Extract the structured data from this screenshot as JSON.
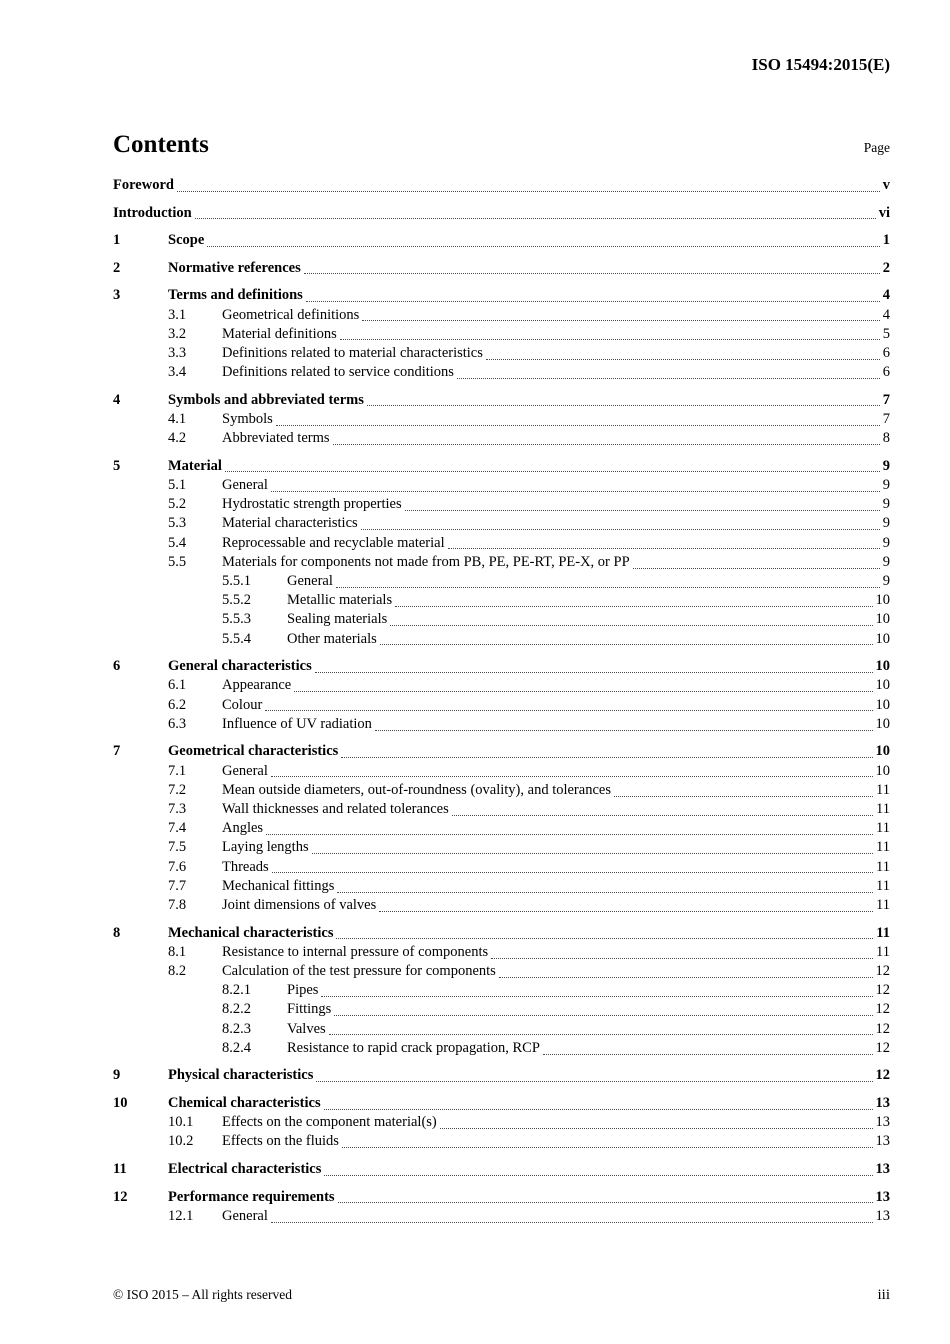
{
  "header": {
    "doc_ref": "ISO 15494:2015(E)"
  },
  "toc": {
    "title": "Contents",
    "page_label": "Page",
    "entries": [
      {
        "level": 0,
        "num": "",
        "title": "Foreword",
        "page": "v"
      },
      {
        "level": 0,
        "num": "",
        "title": "Introduction",
        "page": "vi"
      },
      {
        "level": 1,
        "num": "1",
        "title": "Scope",
        "page": "1"
      },
      {
        "level": 1,
        "num": "2",
        "title": "Normative references",
        "page": "2"
      },
      {
        "level": 1,
        "num": "3",
        "title": "Terms and definitions",
        "page": "4"
      },
      {
        "level": 2,
        "num": "3.1",
        "title": "Geometrical definitions",
        "page": "4"
      },
      {
        "level": 2,
        "num": "3.2",
        "title": "Material definitions",
        "page": "5"
      },
      {
        "level": 2,
        "num": "3.3",
        "title": "Definitions related to material characteristics",
        "page": "6"
      },
      {
        "level": 2,
        "num": "3.4",
        "title": "Definitions related to service conditions",
        "page": "6"
      },
      {
        "level": 1,
        "num": "4",
        "title": "Symbols and abbreviated terms",
        "page": "7"
      },
      {
        "level": 2,
        "num": "4.1",
        "title": "Symbols",
        "page": "7"
      },
      {
        "level": 2,
        "num": "4.2",
        "title": "Abbreviated terms",
        "page": "8"
      },
      {
        "level": 1,
        "num": "5",
        "title": "Material",
        "page": "9"
      },
      {
        "level": 2,
        "num": "5.1",
        "title": "General",
        "page": "9"
      },
      {
        "level": 2,
        "num": "5.2",
        "title": "Hydrostatic strength properties",
        "page": "9"
      },
      {
        "level": 2,
        "num": "5.3",
        "title": "Material characteristics",
        "page": "9"
      },
      {
        "level": 2,
        "num": "5.4",
        "title": "Reprocessable and recyclable material",
        "page": "9"
      },
      {
        "level": 2,
        "num": "5.5",
        "title": "Materials for components not made from PB, PE, PE-RT, PE-X, or PP",
        "page": "9"
      },
      {
        "level": 3,
        "num": "5.5.1",
        "title": "General",
        "page": "9"
      },
      {
        "level": 3,
        "num": "5.5.2",
        "title": "Metallic materials",
        "page": "10"
      },
      {
        "level": 3,
        "num": "5.5.3",
        "title": "Sealing materials",
        "page": "10"
      },
      {
        "level": 3,
        "num": "5.5.4",
        "title": "Other materials",
        "page": "10"
      },
      {
        "level": 1,
        "num": "6",
        "title": "General characteristics",
        "page": "10"
      },
      {
        "level": 2,
        "num": "6.1",
        "title": "Appearance",
        "page": "10"
      },
      {
        "level": 2,
        "num": "6.2",
        "title": "Colour",
        "page": "10"
      },
      {
        "level": 2,
        "num": "6.3",
        "title": "Influence of UV radiation",
        "page": "10"
      },
      {
        "level": 1,
        "num": "7",
        "title": "Geometrical characteristics",
        "page": "10"
      },
      {
        "level": 2,
        "num": "7.1",
        "title": "General",
        "page": "10"
      },
      {
        "level": 2,
        "num": "7.2",
        "title": "Mean outside diameters, out-of-roundness (ovality), and tolerances",
        "page": "11"
      },
      {
        "level": 2,
        "num": "7.3",
        "title": "Wall thicknesses and related tolerances",
        "page": "11"
      },
      {
        "level": 2,
        "num": "7.4",
        "title": "Angles",
        "page": "11"
      },
      {
        "level": 2,
        "num": "7.5",
        "title": "Laying lengths",
        "page": "11"
      },
      {
        "level": 2,
        "num": "7.6",
        "title": "Threads",
        "page": "11"
      },
      {
        "level": 2,
        "num": "7.7",
        "title": "Mechanical fittings",
        "page": "11"
      },
      {
        "level": 2,
        "num": "7.8",
        "title": "Joint dimensions of valves",
        "page": "11"
      },
      {
        "level": 1,
        "num": "8",
        "title": "Mechanical characteristics",
        "page": "11"
      },
      {
        "level": 2,
        "num": "8.1",
        "title": "Resistance to internal pressure of components",
        "page": "11"
      },
      {
        "level": 2,
        "num": "8.2",
        "title": "Calculation of the test pressure for components",
        "page": "12"
      },
      {
        "level": 3,
        "num": "8.2.1",
        "title": "Pipes",
        "page": "12"
      },
      {
        "level": 3,
        "num": "8.2.2",
        "title": "Fittings",
        "page": "12"
      },
      {
        "level": 3,
        "num": "8.2.3",
        "title": "Valves",
        "page": "12"
      },
      {
        "level": 3,
        "num": "8.2.4",
        "title": "Resistance to rapid crack propagation, RCP",
        "page": "12"
      },
      {
        "level": 1,
        "num": "9",
        "title": "Physical characteristics",
        "page": "12"
      },
      {
        "level": 1,
        "num": "10",
        "title": "Chemical characteristics",
        "page": "13"
      },
      {
        "level": 2,
        "num": "10.1",
        "title": "Effects on the component material(s)",
        "page": "13"
      },
      {
        "level": 2,
        "num": "10.2",
        "title": "Effects on the fluids",
        "page": "13"
      },
      {
        "level": 1,
        "num": "11",
        "title": "Electrical characteristics",
        "page": "13"
      },
      {
        "level": 1,
        "num": "12",
        "title": "Performance requirements",
        "page": "13"
      },
      {
        "level": 2,
        "num": "12.1",
        "title": "General",
        "page": "13"
      }
    ]
  },
  "footer": {
    "copyright": "© ISO 2015 – All rights reserved",
    "page_number": "iii"
  }
}
